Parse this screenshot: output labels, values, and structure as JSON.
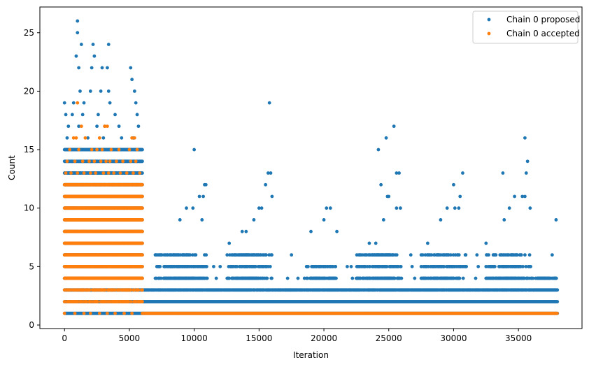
{
  "chart_data": {
    "type": "scatter",
    "xlabel": "Iteration",
    "ylabel": "Count",
    "xlim": [
      -1900,
      39900
    ],
    "ylim": [
      -0.3,
      27.2
    ],
    "xticks": [
      0,
      5000,
      10000,
      15000,
      20000,
      25000,
      30000,
      35000
    ],
    "yticks": [
      0,
      5,
      10,
      15,
      20,
      25
    ],
    "grid": false,
    "legend": "top-right",
    "series": [
      {
        "name": "Chain 0 proposed",
        "color": "#1f77b4",
        "regions": [
          {
            "x_start": 0,
            "x_end": 6000,
            "min": 1,
            "max": 15,
            "step": 30
          },
          {
            "x_start": 6000,
            "x_end": 38000,
            "min": 1,
            "max": 3,
            "step": 40
          }
        ],
        "bursts": [
          {
            "x_start": 7000,
            "x_end": 11000,
            "max": 6
          },
          {
            "x_start": 12500,
            "x_end": 16000,
            "max": 6
          },
          {
            "x_start": 18500,
            "x_end": 21000,
            "max": 5
          },
          {
            "x_start": 22500,
            "x_end": 26000,
            "max": 6
          },
          {
            "x_start": 27500,
            "x_end": 31000,
            "max": 6
          },
          {
            "x_start": 32500,
            "x_end": 36000,
            "max": 6
          },
          {
            "x_start": 36000,
            "x_end": 38000,
            "max": 4
          }
        ],
        "points": [
          {
            "x": 1000,
            "y": 26
          },
          {
            "x": 1000,
            "y": 25
          },
          {
            "x": 900,
            "y": 23
          },
          {
            "x": 1100,
            "y": 22
          },
          {
            "x": 1300,
            "y": 24
          },
          {
            "x": 2200,
            "y": 24
          },
          {
            "x": 2300,
            "y": 23
          },
          {
            "x": 2100,
            "y": 22
          },
          {
            "x": 2900,
            "y": 22
          },
          {
            "x": 3400,
            "y": 24
          },
          {
            "x": 3300,
            "y": 22
          },
          {
            "x": 5100,
            "y": 22
          },
          {
            "x": 5200,
            "y": 21
          },
          {
            "x": 0,
            "y": 19
          },
          {
            "x": 100,
            "y": 18
          },
          {
            "x": 1200,
            "y": 20
          },
          {
            "x": 2000,
            "y": 20
          },
          {
            "x": 2800,
            "y": 20
          },
          {
            "x": 3400,
            "y": 20
          },
          {
            "x": 5400,
            "y": 20
          },
          {
            "x": 700,
            "y": 19
          },
          {
            "x": 1500,
            "y": 19
          },
          {
            "x": 3500,
            "y": 19
          },
          {
            "x": 5500,
            "y": 19
          },
          {
            "x": 600,
            "y": 18
          },
          {
            "x": 1400,
            "y": 18
          },
          {
            "x": 2600,
            "y": 18
          },
          {
            "x": 3900,
            "y": 18
          },
          {
            "x": 5600,
            "y": 18
          },
          {
            "x": 300,
            "y": 17
          },
          {
            "x": 1100,
            "y": 17
          },
          {
            "x": 2500,
            "y": 17
          },
          {
            "x": 3100,
            "y": 17
          },
          {
            "x": 4200,
            "y": 17
          },
          {
            "x": 5700,
            "y": 17
          },
          {
            "x": 200,
            "y": 16
          },
          {
            "x": 1800,
            "y": 16
          },
          {
            "x": 3000,
            "y": 16
          },
          {
            "x": 4400,
            "y": 16
          },
          {
            "x": 5300,
            "y": 16
          },
          {
            "x": 10000,
            "y": 15
          },
          {
            "x": 15800,
            "y": 19
          },
          {
            "x": 24200,
            "y": 15
          },
          {
            "x": 24800,
            "y": 16
          },
          {
            "x": 25400,
            "y": 17
          },
          {
            "x": 35500,
            "y": 16
          },
          {
            "x": 35700,
            "y": 14
          },
          {
            "x": 35600,
            "y": 13
          },
          {
            "x": 33800,
            "y": 13
          },
          {
            "x": 30700,
            "y": 13
          },
          {
            "x": 25600,
            "y": 13
          },
          {
            "x": 25800,
            "y": 13
          },
          {
            "x": 15900,
            "y": 13
          },
          {
            "x": 15700,
            "y": 13
          },
          {
            "x": 10800,
            "y": 12
          },
          {
            "x": 10900,
            "y": 12
          },
          {
            "x": 15500,
            "y": 12
          },
          {
            "x": 24400,
            "y": 12
          },
          {
            "x": 30000,
            "y": 12
          },
          {
            "x": 30500,
            "y": 11
          },
          {
            "x": 34700,
            "y": 11
          },
          {
            "x": 35300,
            "y": 11
          },
          {
            "x": 35500,
            "y": 11
          },
          {
            "x": 25000,
            "y": 11
          },
          {
            "x": 24900,
            "y": 11
          },
          {
            "x": 16000,
            "y": 11
          },
          {
            "x": 10400,
            "y": 11
          },
          {
            "x": 10700,
            "y": 11
          },
          {
            "x": 9400,
            "y": 10
          },
          {
            "x": 9900,
            "y": 10
          },
          {
            "x": 15000,
            "y": 10
          },
          {
            "x": 15200,
            "y": 10
          },
          {
            "x": 20200,
            "y": 10
          },
          {
            "x": 20500,
            "y": 10
          },
          {
            "x": 25600,
            "y": 10
          },
          {
            "x": 25900,
            "y": 10
          },
          {
            "x": 29500,
            "y": 10
          },
          {
            "x": 30100,
            "y": 10
          },
          {
            "x": 30400,
            "y": 10
          },
          {
            "x": 34300,
            "y": 10
          },
          {
            "x": 35900,
            "y": 10
          },
          {
            "x": 8900,
            "y": 9
          },
          {
            "x": 10600,
            "y": 9
          },
          {
            "x": 14600,
            "y": 9
          },
          {
            "x": 20000,
            "y": 9
          },
          {
            "x": 24600,
            "y": 9
          },
          {
            "x": 29000,
            "y": 9
          },
          {
            "x": 33900,
            "y": 9
          },
          {
            "x": 37900,
            "y": 9
          },
          {
            "x": 19000,
            "y": 8
          },
          {
            "x": 21000,
            "y": 8
          },
          {
            "x": 14000,
            "y": 8
          },
          {
            "x": 13700,
            "y": 8
          },
          {
            "x": 12700,
            "y": 7
          },
          {
            "x": 23500,
            "y": 7
          },
          {
            "x": 24000,
            "y": 7
          },
          {
            "x": 28000,
            "y": 7
          },
          {
            "x": 32500,
            "y": 7
          },
          {
            "x": 7000,
            "y": 6
          },
          {
            "x": 7500,
            "y": 6
          },
          {
            "x": 17500,
            "y": 6
          },
          {
            "x": 26700,
            "y": 6
          },
          {
            "x": 31800,
            "y": 6
          },
          {
            "x": 37600,
            "y": 6
          },
          {
            "x": 11500,
            "y": 5
          },
          {
            "x": 12000,
            "y": 5
          },
          {
            "x": 21800,
            "y": 5
          },
          {
            "x": 22100,
            "y": 5
          },
          {
            "x": 26800,
            "y": 5
          },
          {
            "x": 31900,
            "y": 5
          },
          {
            "x": 17200,
            "y": 4
          },
          {
            "x": 18000,
            "y": 4
          },
          {
            "x": 11700,
            "y": 4
          },
          {
            "x": 22200,
            "y": 4
          },
          {
            "x": 27000,
            "y": 4
          },
          {
            "x": 31700,
            "y": 4
          },
          {
            "x": 17000,
            "y": 3
          },
          {
            "x": 17400,
            "y": 3
          },
          {
            "x": 11500,
            "y": 3
          }
        ]
      },
      {
        "name": "Chain 0 accepted",
        "color": "#ff7f0e",
        "regions": [
          {
            "x_start": 0,
            "x_end": 6000,
            "min": 2,
            "max": 12,
            "step": 30
          },
          {
            "x_start": 6000,
            "x_end": 38000,
            "min": 1,
            "max": 1,
            "step": 30
          }
        ],
        "points": [
          {
            "x": 1000,
            "y": 19
          },
          {
            "x": 1300,
            "y": 17
          },
          {
            "x": 3100,
            "y": 17
          },
          {
            "x": 3300,
            "y": 17
          },
          {
            "x": 700,
            "y": 16
          },
          {
            "x": 900,
            "y": 16
          },
          {
            "x": 1600,
            "y": 16
          },
          {
            "x": 2700,
            "y": 16
          },
          {
            "x": 5200,
            "y": 16
          },
          {
            "x": 5400,
            "y": 16
          },
          {
            "x": 400,
            "y": 15
          },
          {
            "x": 1100,
            "y": 15
          },
          {
            "x": 2100,
            "y": 15
          },
          {
            "x": 2500,
            "y": 15
          },
          {
            "x": 2900,
            "y": 15
          },
          {
            "x": 3600,
            "y": 15
          },
          {
            "x": 4200,
            "y": 15
          },
          {
            "x": 5000,
            "y": 15
          },
          {
            "x": 5600,
            "y": 15
          },
          {
            "x": 200,
            "y": 14
          },
          {
            "x": 800,
            "y": 14
          },
          {
            "x": 1400,
            "y": 14
          },
          {
            "x": 1900,
            "y": 14
          },
          {
            "x": 2300,
            "y": 14
          },
          {
            "x": 2800,
            "y": 14
          },
          {
            "x": 3200,
            "y": 14
          },
          {
            "x": 3500,
            "y": 14
          },
          {
            "x": 4000,
            "y": 14
          },
          {
            "x": 4500,
            "y": 14
          },
          {
            "x": 5100,
            "y": 14
          },
          {
            "x": 5500,
            "y": 14
          },
          {
            "x": 100,
            "y": 13
          },
          {
            "x": 500,
            "y": 13
          },
          {
            "x": 1000,
            "y": 13
          },
          {
            "x": 1500,
            "y": 13
          },
          {
            "x": 2000,
            "y": 13
          },
          {
            "x": 2400,
            "y": 13
          },
          {
            "x": 3000,
            "y": 13
          },
          {
            "x": 3400,
            "y": 13
          },
          {
            "x": 3800,
            "y": 13
          },
          {
            "x": 4300,
            "y": 13
          },
          {
            "x": 4800,
            "y": 13
          },
          {
            "x": 5300,
            "y": 13
          },
          {
            "x": 5800,
            "y": 13
          },
          {
            "x": 0,
            "y": 1
          },
          {
            "x": 800,
            "y": 1
          },
          {
            "x": 1500,
            "y": 1
          },
          {
            "x": 2000,
            "y": 1
          },
          {
            "x": 2700,
            "y": 1
          },
          {
            "x": 3300,
            "y": 1
          },
          {
            "x": 3900,
            "y": 1
          },
          {
            "x": 4600,
            "y": 1
          },
          {
            "x": 5200,
            "y": 1
          }
        ]
      }
    ]
  }
}
